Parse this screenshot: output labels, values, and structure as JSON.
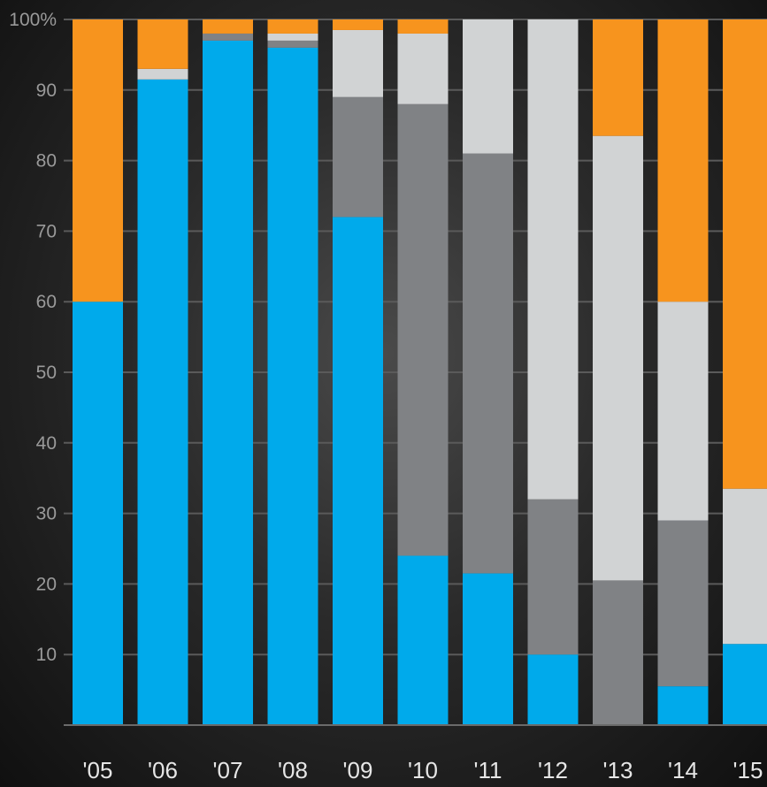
{
  "chart_data": {
    "type": "bar",
    "stacked": true,
    "categories": [
      "'05",
      "'06",
      "'07",
      "'08",
      "'09",
      "'10",
      "'11",
      "'12",
      "'13",
      "'14",
      "'15"
    ],
    "ylim": [
      0,
      100
    ],
    "ytick_labels": [
      "10",
      "20",
      "30",
      "40",
      "50",
      "60",
      "70",
      "80",
      "90",
      "100%"
    ],
    "ytick_values": [
      10,
      20,
      30,
      40,
      50,
      60,
      70,
      80,
      90,
      100
    ],
    "grid": true,
    "series": [
      {
        "color": "#00aaeb",
        "values": [
          60,
          91.5,
          97,
          96,
          72,
          24,
          21.5,
          10,
          0,
          5.5,
          11.5
        ]
      },
      {
        "color": "#808285",
        "values": [
          0,
          0,
          1,
          1,
          17,
          64,
          59.5,
          22,
          20.5,
          23.5,
          0
        ]
      },
      {
        "color": "#d1d3d4",
        "values": [
          0,
          1.5,
          0,
          1,
          9.5,
          10,
          19,
          68,
          63,
          31,
          22
        ]
      },
      {
        "color": "#f7941e",
        "values": [
          40,
          7,
          2,
          2,
          1.5,
          2,
          0,
          0,
          16.5,
          40,
          66.5
        ]
      }
    ]
  }
}
